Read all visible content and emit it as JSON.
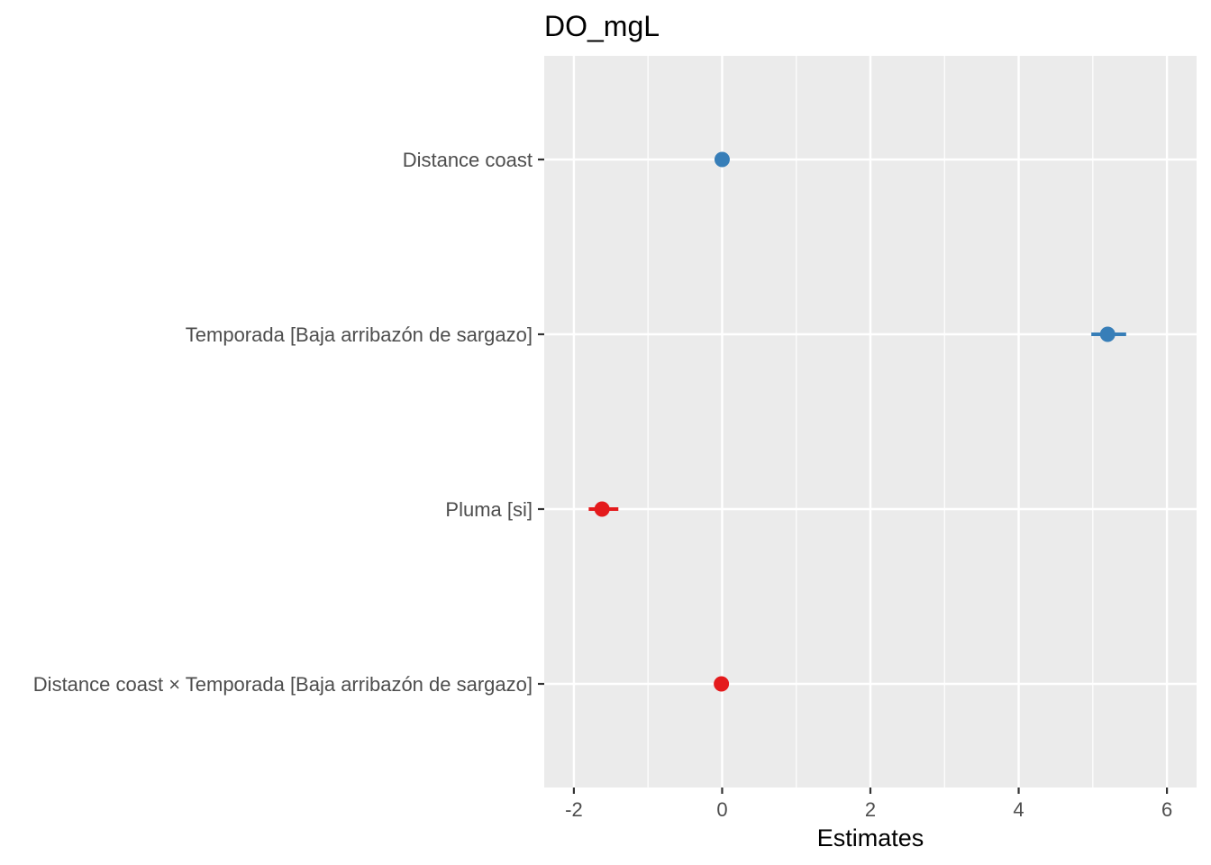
{
  "chart_data": {
    "type": "scatter",
    "title": "DO_mgL",
    "xlabel": "Estimates",
    "ylabel": "",
    "xlim": [
      -2.4,
      6.4
    ],
    "x_ticks": [
      -2,
      0,
      2,
      4,
      6
    ],
    "x_tick_labels": [
      "-2",
      "0",
      "2",
      "4",
      "6"
    ],
    "grid": true,
    "legend": "none",
    "terms": [
      "Distance coast",
      "Temporada [Baja arribazón de sargazo]",
      "Pluma [si]",
      "Distance coast × Temporada [Baja arribazón de sargazo]"
    ],
    "estimates": [
      0.0,
      5.2,
      -1.62,
      -0.01
    ],
    "ci_low": [
      -0.02,
      4.98,
      -1.8,
      -0.03
    ],
    "ci_high": [
      0.02,
      5.45,
      -1.4,
      0.01
    ],
    "colors": [
      "#377eb8",
      "#377eb8",
      "#e41a1c",
      "#e41a1c"
    ],
    "panel_background": "#ebebeb",
    "grid_color": "#ffffff"
  }
}
